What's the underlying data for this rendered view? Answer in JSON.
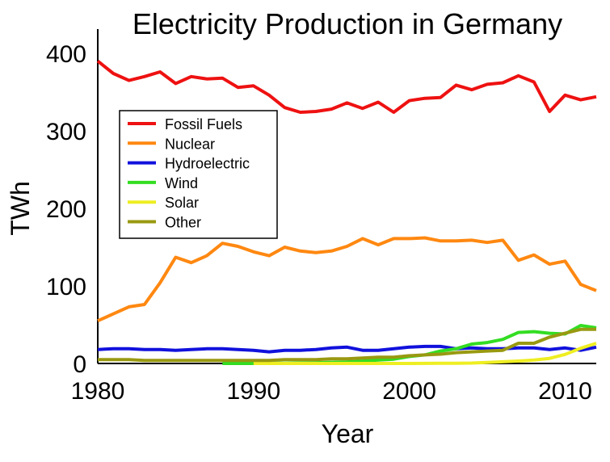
{
  "chart_data": {
    "type": "line",
    "title": "Electricity Production in Germany",
    "xlabel": "Year",
    "ylabel": "TWh",
    "xlim": [
      1980,
      2012
    ],
    "ylim": [
      0,
      400
    ],
    "xticks": [
      1980,
      1990,
      2000,
      2010
    ],
    "yticks": [
      0,
      100,
      200,
      300,
      400
    ],
    "grid": false,
    "legend_position": "upper-left",
    "x": [
      1980,
      1981,
      1982,
      1983,
      1984,
      1985,
      1986,
      1987,
      1988,
      1989,
      1990,
      1991,
      1992,
      1993,
      1994,
      1995,
      1996,
      1997,
      1998,
      1999,
      2000,
      2001,
      2002,
      2003,
      2004,
      2005,
      2006,
      2007,
      2008,
      2009,
      2010,
      2011,
      2012
    ],
    "series": [
      {
        "name": "Fossil Fuels",
        "color": "#ee1111",
        "values": [
          390,
          374,
          365,
          370,
          376,
          361,
          370,
          367,
          368,
          356,
          358,
          346,
          330,
          324,
          325,
          328,
          336,
          329,
          337,
          324,
          339,
          342,
          343,
          359,
          353,
          360,
          362,
          371,
          363,
          325,
          346,
          340,
          344
        ]
      },
      {
        "name": "Nuclear",
        "color": "#ff8811",
        "values": [
          55,
          64,
          73,
          76,
          104,
          137,
          130,
          139,
          155,
          151,
          144,
          139,
          150,
          145,
          143,
          145,
          151,
          161,
          153,
          161,
          161,
          162,
          158,
          158,
          159,
          156,
          159,
          133,
          140,
          128,
          132,
          102,
          94
        ]
      },
      {
        "name": "Hydroelectric",
        "color": "#1111dd",
        "values": [
          18,
          19,
          19,
          18,
          18,
          17,
          18,
          19,
          19,
          18,
          17,
          15,
          17,
          17,
          18,
          20,
          21,
          17,
          17,
          19,
          21,
          22,
          22,
          19,
          20,
          19,
          19,
          20,
          20,
          18,
          20,
          17,
          21
        ]
      },
      {
        "name": "Wind",
        "color": "#33dd22",
        "values": [
          null,
          null,
          null,
          null,
          null,
          null,
          null,
          null,
          0,
          0,
          0,
          0.2,
          0.3,
          0.6,
          0.9,
          1.5,
          2,
          3,
          4.5,
          5.5,
          9,
          11,
          16,
          19,
          25,
          27,
          31,
          40,
          41,
          39,
          38,
          49,
          46
        ]
      },
      {
        "name": "Solar",
        "color": "#eeee22",
        "values": [
          null,
          null,
          null,
          null,
          null,
          null,
          null,
          null,
          null,
          null,
          0,
          0,
          0,
          0,
          0,
          0,
          0,
          0,
          0,
          0,
          0,
          0.1,
          0.2,
          0.3,
          0.5,
          1.3,
          2.2,
          3.1,
          4.4,
          6.6,
          11.7,
          19.6,
          26
        ]
      },
      {
        "name": "Other",
        "color": "#999911",
        "values": [
          5,
          5,
          5,
          4,
          4,
          4,
          4,
          4,
          4,
          4,
          4,
          4,
          5,
          5,
          5,
          6,
          6,
          7,
          8,
          8,
          10,
          11,
          12,
          14,
          15,
          16,
          17,
          26,
          26,
          34,
          39,
          44,
          44
        ]
      }
    ]
  }
}
